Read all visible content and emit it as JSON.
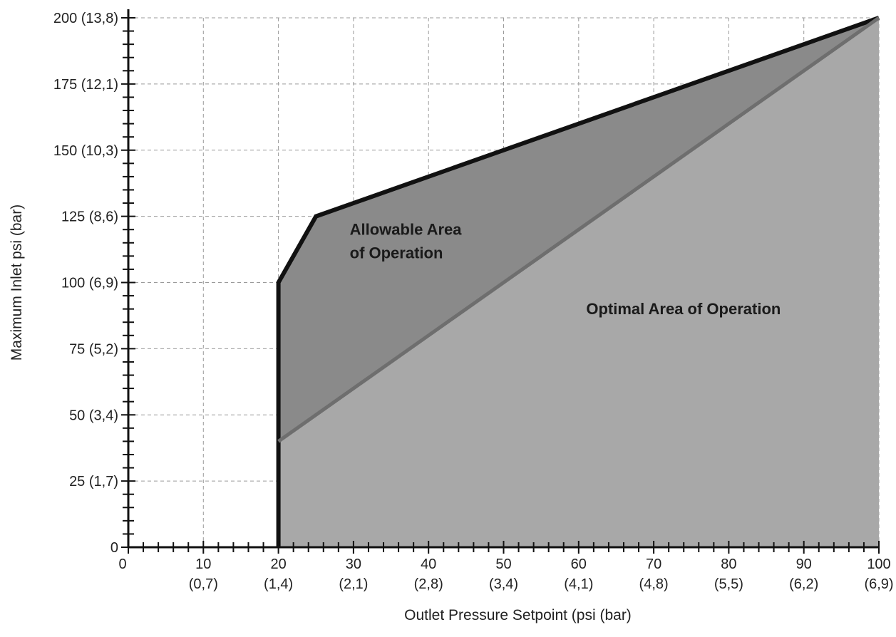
{
  "chart_data": {
    "type": "area",
    "title": "",
    "xlabel": "Outlet Pressure Setpoint (psi (bar)",
    "ylabel": "Maximum Inlet psi (bar)",
    "xlim": [
      0,
      100
    ],
    "ylim": [
      0,
      200
    ],
    "grid": true,
    "x_ticks": [
      {
        "value": 0,
        "label": "0",
        "sub": ""
      },
      {
        "value": 10,
        "label": "10",
        "sub": "(0,7)"
      },
      {
        "value": 20,
        "label": "20",
        "sub": "(1,4)"
      },
      {
        "value": 30,
        "label": "30",
        "sub": "(2,1)"
      },
      {
        "value": 40,
        "label": "40",
        "sub": "(2,8)"
      },
      {
        "value": 50,
        "label": "50",
        "sub": "(3,4)"
      },
      {
        "value": 60,
        "label": "60",
        "sub": "(4,1)"
      },
      {
        "value": 70,
        "label": "70",
        "sub": "(4,8)"
      },
      {
        "value": 80,
        "label": "80",
        "sub": "(5,5)"
      },
      {
        "value": 90,
        "label": "90",
        "sub": "(6,2)"
      },
      {
        "value": 100,
        "label": "100",
        "sub": "(6,9)"
      }
    ],
    "y_ticks": [
      {
        "value": 0,
        "label": "0"
      },
      {
        "value": 25,
        "label": "25 (1,7)"
      },
      {
        "value": 50,
        "label": "50 (3,4)"
      },
      {
        "value": 75,
        "label": "75 (5,2)"
      },
      {
        "value": 100,
        "label": "100 (6,9)"
      },
      {
        "value": 125,
        "label": "125 (8,6)"
      },
      {
        "value": 150,
        "label": "150 (10,3)"
      },
      {
        "value": 175,
        "label": "175 (12,1)"
      },
      {
        "value": 200,
        "label": "200 (13,8)"
      }
    ],
    "series": [
      {
        "name": "Allowable Area of Operation",
        "color": "#8a8a8a",
        "x": [
          20,
          20,
          25,
          100,
          100,
          20
        ],
        "y": [
          0,
          100,
          125,
          200,
          0,
          0
        ]
      },
      {
        "name": "Optimal Area of Operation",
        "color": "#a8a8a8",
        "x": [
          20,
          100,
          100,
          20
        ],
        "y": [
          40,
          200,
          0,
          0
        ]
      }
    ],
    "annotations": [
      {
        "lines": [
          "Allowable Area",
          "of Operation"
        ],
        "x": 29.5,
        "y": 118
      },
      {
        "lines": [
          "Optimal Area of Operation"
        ],
        "x": 61,
        "y": 88
      }
    ]
  }
}
